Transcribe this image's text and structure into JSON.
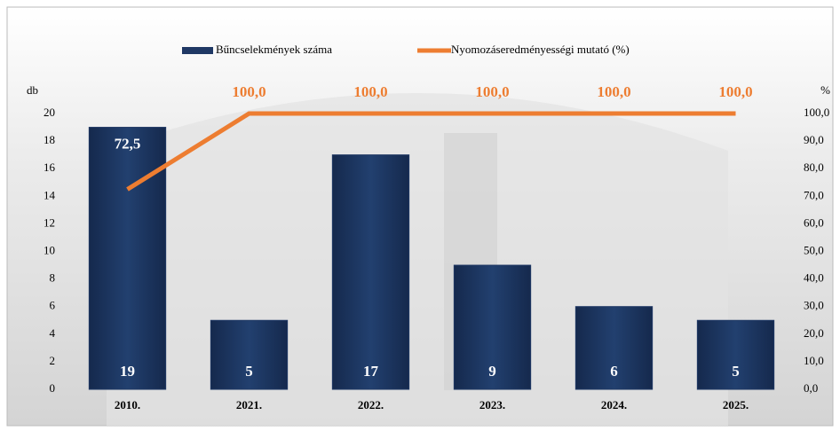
{
  "chart_data": {
    "type": "combo",
    "categories": [
      "2010.",
      "2021.",
      "2022.",
      "2023.",
      "2024.",
      "2025."
    ],
    "series": [
      {
        "name": "Bűncselekmények száma",
        "type": "bar",
        "color": "#1f3864",
        "values": [
          19,
          5,
          17,
          9,
          6,
          5
        ]
      },
      {
        "name": "Nyomozáseredményességi mutató (%)",
        "type": "line",
        "axis": "y2",
        "color": "#ed7d31",
        "values": [
          72.5,
          100,
          100,
          100,
          100,
          100
        ],
        "value_labels": [
          "72,5",
          "100,0",
          "100,0",
          "100,0",
          "100,0",
          "100,0"
        ]
      }
    ],
    "ylabel": "db",
    "y2label": "%",
    "ylim": [
      0,
      20
    ],
    "yticks": [
      0,
      2,
      4,
      6,
      8,
      10,
      12,
      14,
      16,
      18,
      20
    ],
    "y2lim": [
      0,
      100
    ],
    "y2ticks": [
      {
        "value": 0,
        "label": "0,0"
      },
      {
        "value": 10,
        "label": "10,0"
      },
      {
        "value": 20,
        "label": "20,0"
      },
      {
        "value": 30,
        "label": "30,0"
      },
      {
        "value": 40,
        "label": "40,0"
      },
      {
        "value": 50,
        "label": "50,0"
      },
      {
        "value": 60,
        "label": "60,0"
      },
      {
        "value": 70,
        "label": "70,0"
      },
      {
        "value": 80,
        "label": "80,0"
      },
      {
        "value": 90,
        "label": "90,0"
      },
      {
        "value": 100,
        "label": "100,0"
      }
    ],
    "legend": "top",
    "grid": false
  }
}
